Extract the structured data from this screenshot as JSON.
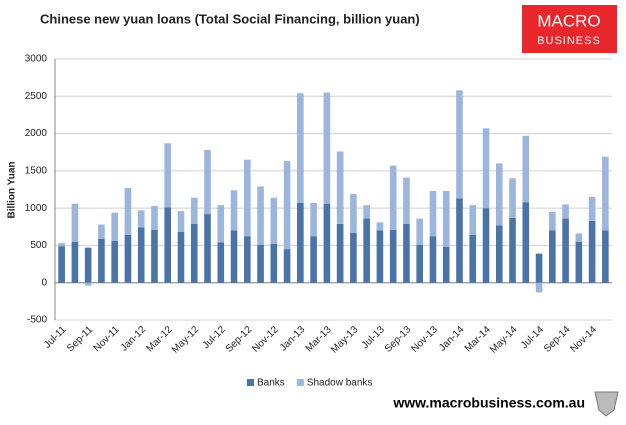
{
  "chart_data": {
    "type": "stacked_bar",
    "title": "Chinese new yuan loans (Total Social Financing, billion yuan)",
    "y_label": "Billion Yuan",
    "categories": [
      "Jul-11",
      null,
      "Sep-11",
      null,
      "Nov-11",
      null,
      "Jan-12",
      null,
      "Mar-12",
      null,
      "May-12",
      null,
      "Jul-12",
      null,
      "Sep-12",
      null,
      "Nov-12",
      null,
      "Jan-13",
      null,
      "Mar-13",
      null,
      "May-13",
      null,
      "Jul-13",
      null,
      "Sep-13",
      null,
      "Nov-13",
      null,
      "Jan-14",
      null,
      "Mar-14",
      null,
      "May-14",
      null,
      "Jul-14",
      null,
      "Sep-14",
      null,
      "Nov-14",
      null
    ],
    "series": [
      {
        "name": "Banks",
        "color": "#4a73a8",
        "values": [
          490,
          550,
          470,
          590,
          560,
          640,
          740,
          710,
          1010,
          680,
          790,
          920,
          540,
          700,
          620,
          510,
          520,
          450,
          1070,
          620,
          1060,
          790,
          670,
          860,
          700,
          710,
          790,
          510,
          620,
          480,
          1130,
          640,
          1000,
          770,
          870,
          1080,
          390,
          700,
          860,
          550,
          830,
          700
        ]
      },
      {
        "name": "Shadow banks",
        "color": "#9bb5dc",
        "values": [
          40,
          510,
          -40,
          190,
          380,
          630,
          230,
          320,
          860,
          280,
          350,
          860,
          500,
          540,
          1030,
          780,
          620,
          1180,
          1470,
          450,
          1490,
          970,
          520,
          180,
          110,
          860,
          620,
          350,
          610,
          750,
          1450,
          400,
          1070,
          830,
          530,
          890,
          -130,
          250,
          190,
          110,
          320,
          990
        ]
      }
    ],
    "ylim": [
      -500,
      3000
    ],
    "yticks": [
      -500,
      0,
      500,
      1000,
      1500,
      2000,
      2500,
      3000
    ],
    "grid": true
  },
  "branding": {
    "logo": [
      "MACRO",
      "BUSINESS"
    ],
    "url": "www.macrobusiness.com.au"
  }
}
